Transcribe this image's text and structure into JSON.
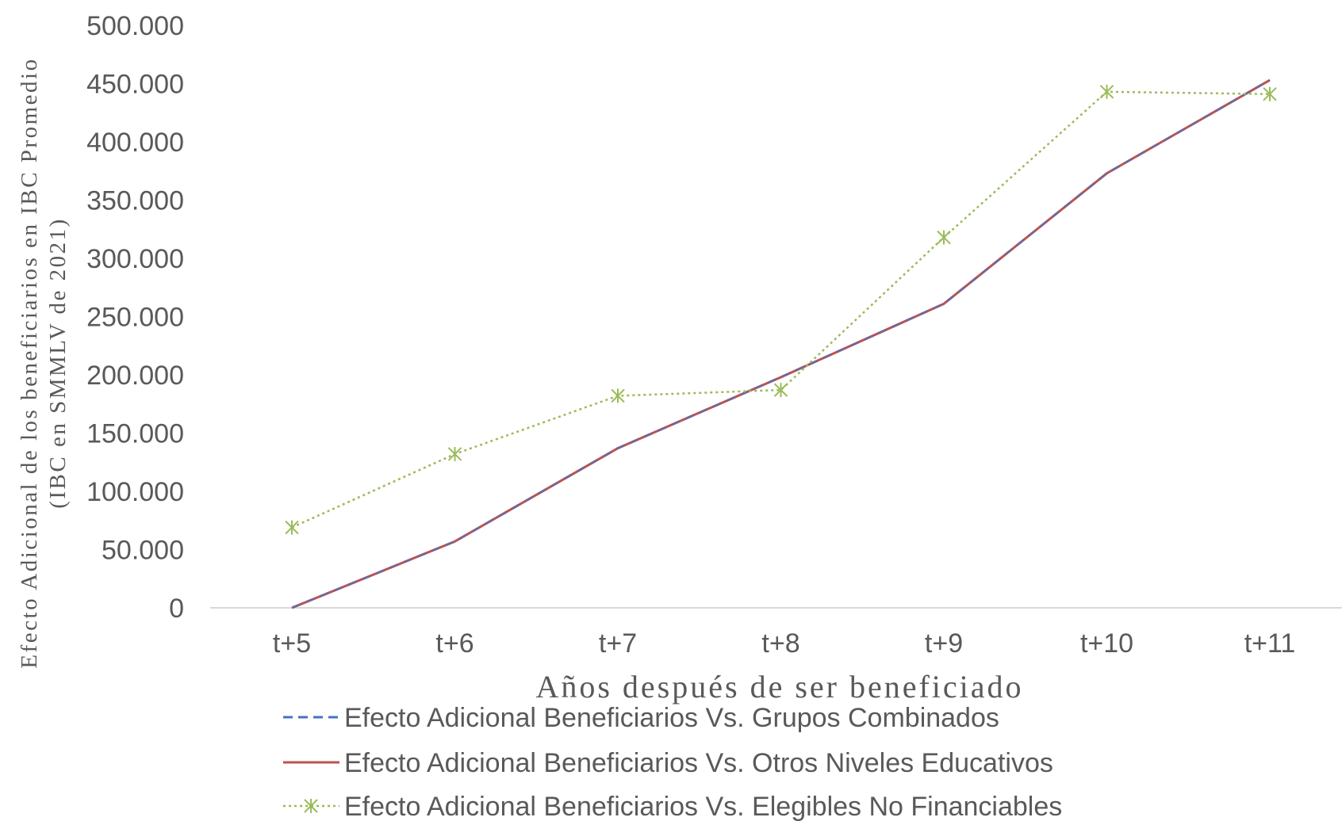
{
  "chart_data": {
    "type": "line",
    "title": "",
    "xlabel": "Años después de ser beneficiado",
    "ylabel": "Efecto Adicional de los beneficiarios en IBC Promedio",
    "ylabel_line2": "(IBC en SMMLV de 2021)",
    "categories": [
      "t+5",
      "t+6",
      "t+7",
      "t+8",
      "t+9",
      "t+10",
      "t+11"
    ],
    "ylim": [
      0,
      500000
    ],
    "yticks": [
      0,
      50000,
      100000,
      150000,
      200000,
      250000,
      300000,
      350000,
      400000,
      450000,
      500000
    ],
    "ytick_labels": [
      "0",
      "50.000",
      "100.000",
      "150.000",
      "200.000",
      "250.000",
      "300.000",
      "350.000",
      "400.000",
      "450.000",
      "500.000"
    ],
    "grid": false,
    "legend_position": "bottom",
    "series": [
      {
        "name": "Efecto Adicional Beneficiarios Vs. Grupos Combinados",
        "values": [
          0,
          57000,
          137000,
          198000,
          261000,
          373000,
          453000
        ],
        "color": "#4472C4",
        "style": "dashed",
        "marker": "none"
      },
      {
        "name": "Efecto Adicional Beneficiarios Vs. Otros Niveles Educativos",
        "values": [
          0,
          57000,
          137000,
          198000,
          261000,
          373000,
          453000
        ],
        "color": "#C0504D",
        "style": "solid",
        "marker": "none"
      },
      {
        "name": "Efecto Adicional Beneficiarios Vs. Elegibles No Financiables",
        "values": [
          69000,
          132000,
          182000,
          187000,
          318000,
          443000,
          441000
        ],
        "color": "#9BBB59",
        "style": "dotted",
        "marker": "asterisk"
      }
    ]
  }
}
